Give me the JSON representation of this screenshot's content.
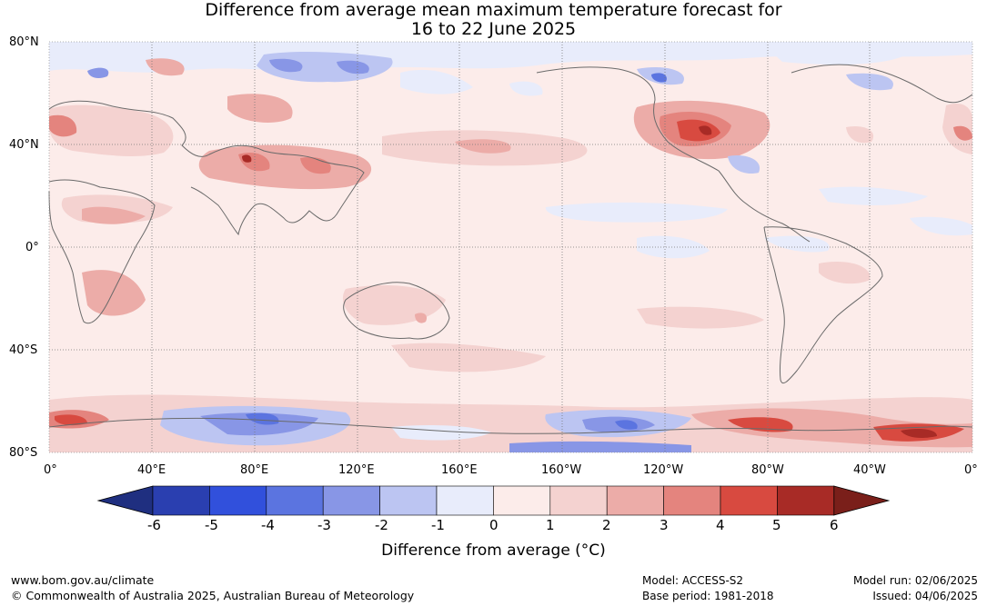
{
  "title_line1": "Difference from average mean maximum temperature forecast for",
  "title_line2": "16 to 22 June 2025",
  "lat_labels": [
    "80°N",
    "40°N",
    "0°",
    "40°S",
    "80°S"
  ],
  "lon_labels": [
    "0°",
    "40°E",
    "80°E",
    "120°E",
    "160°E",
    "160°W",
    "120°W",
    "80°W",
    "40°W",
    "0°"
  ],
  "colorbar": {
    "ticks": [
      "-6",
      "-5",
      "-4",
      "-3",
      "-2",
      "-1",
      "0",
      "1",
      "2",
      "3",
      "4",
      "5",
      "6"
    ],
    "colors": [
      "#1f2f80",
      "#2a3fb0",
      "#3150dc",
      "#5b74e0",
      "#8896e6",
      "#bcc5f2",
      "#e8ecfb",
      "#fcecea",
      "#f4d2d0",
      "#ecaca8",
      "#e4847e",
      "#d84a40",
      "#a82b26",
      "#7a1f1a"
    ],
    "label": "Difference from average (°C)"
  },
  "footer": {
    "url": "www.bom.gov.au/climate",
    "copyright": "© Commonwealth of Australia 2025, Australian Bureau of Meteorology",
    "model": "Model: ACCESS-S2",
    "base_period": "Base period: 1981-2018",
    "model_run": "Model run: 02/06/2025",
    "issued": "Issued: 04/06/2025"
  }
}
